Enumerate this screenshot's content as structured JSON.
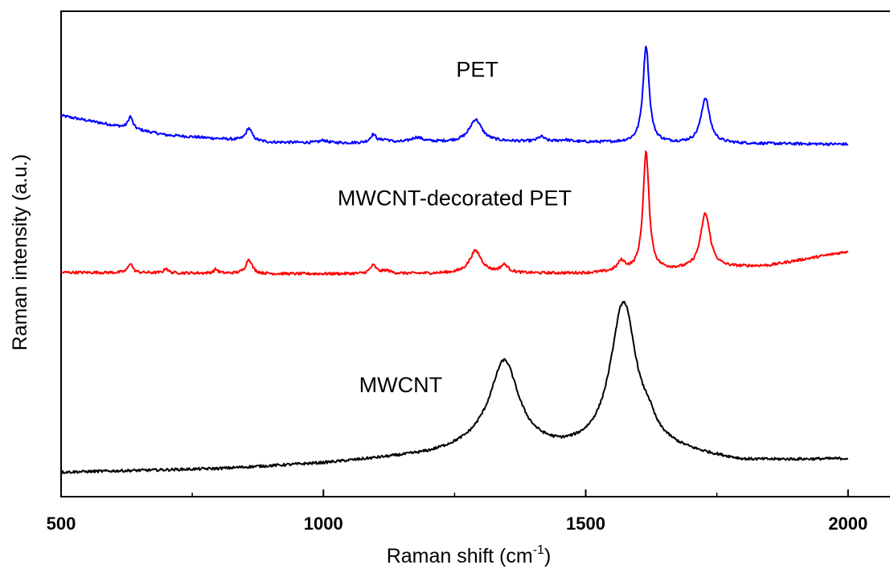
{
  "chart_data": {
    "type": "line",
    "xlabel": "Raman shift (cm",
    "xlabel_superscript": "-1",
    "xlabel_suffix": ")",
    "ylabel": "Raman intensity (a.u.)",
    "xlim": [
      500,
      2080
    ],
    "ylim": [
      0,
      100
    ],
    "x_ticks": [
      500,
      1000,
      1500,
      2000
    ],
    "x_minor_ticks": [
      750,
      1250,
      1750
    ],
    "y_tick_labels": "none",
    "grid": false,
    "legend": "none",
    "series": [
      {
        "name": "PET",
        "color": "#0000ff",
        "baseline": [
          [
            500,
            78.5
          ],
          [
            700,
            74.5
          ],
          [
            900,
            73.0
          ],
          [
            1100,
            72.8
          ],
          [
            1300,
            73.2
          ],
          [
            1500,
            73.0
          ],
          [
            1700,
            72.8
          ],
          [
            2000,
            72.6
          ]
        ],
        "peaks": [
          {
            "x": 632,
            "height": 2.5,
            "width": 5
          },
          {
            "x": 858,
            "height": 2.6,
            "width": 7
          },
          {
            "x": 1000,
            "height": 0.5,
            "width": 8
          },
          {
            "x": 1095,
            "height": 1.7,
            "width": 7
          },
          {
            "x": 1118,
            "height": 0.6,
            "width": 10
          },
          {
            "x": 1178,
            "height": 1.0,
            "width": 14
          },
          {
            "x": 1290,
            "height": 4.5,
            "width": 14
          },
          {
            "x": 1415,
            "height": 1.0,
            "width": 8
          },
          {
            "x": 1460,
            "height": 0.4,
            "width": 14
          },
          {
            "x": 1615,
            "height": 20.0,
            "width": 7
          },
          {
            "x": 1728,
            "height": 9.3,
            "width": 10
          }
        ]
      },
      {
        "name": "MWCNT-decorated PET",
        "color": "#ff0000",
        "baseline": [
          [
            500,
            46.2
          ],
          [
            700,
            46.1
          ],
          [
            900,
            45.9
          ],
          [
            1100,
            45.9
          ],
          [
            1300,
            46.0
          ],
          [
            1500,
            46.0
          ],
          [
            1700,
            46.8
          ],
          [
            1850,
            47.6
          ],
          [
            2000,
            50.5
          ]
        ],
        "peaks": [
          {
            "x": 632,
            "height": 2.0,
            "width": 5
          },
          {
            "x": 700,
            "height": 1.0,
            "width": 4
          },
          {
            "x": 795,
            "height": 0.8,
            "width": 5
          },
          {
            "x": 858,
            "height": 3.0,
            "width": 7
          },
          {
            "x": 1095,
            "height": 1.7,
            "width": 7
          },
          {
            "x": 1120,
            "height": 0.6,
            "width": 10
          },
          {
            "x": 1290,
            "height": 4.6,
            "width": 14
          },
          {
            "x": 1345,
            "height": 1.6,
            "width": 9
          },
          {
            "x": 1568,
            "height": 2.0,
            "width": 9
          },
          {
            "x": 1615,
            "height": 24.4,
            "width": 7
          },
          {
            "x": 1728,
            "height": 11.3,
            "width": 11
          }
        ]
      },
      {
        "name": "MWCNT",
        "color": "#000000",
        "baseline": [
          [
            500,
            5.0
          ],
          [
            800,
            5.7
          ],
          [
            1000,
            6.8
          ],
          [
            1200,
            8.5
          ],
          [
            1300,
            10.2
          ],
          [
            1450,
            9.0
          ],
          [
            1650,
            9.2
          ],
          [
            1800,
            7.2
          ],
          [
            2000,
            7.7
          ]
        ],
        "peaks": [
          {
            "x": 1345,
            "height": 17.8,
            "width": 33
          },
          {
            "x": 1572,
            "height": 30.5,
            "width": 30
          },
          {
            "x": 1620,
            "height": 2.5,
            "width": 14
          }
        ]
      }
    ],
    "annotations": [
      {
        "text": "PET",
        "x": 1253,
        "y": 86.5
      },
      {
        "text": "MWCNT-decorated PET",
        "x": 1027,
        "y": 60.0
      },
      {
        "text": "MWCNT",
        "x": 1068,
        "y": 21.5
      }
    ]
  }
}
